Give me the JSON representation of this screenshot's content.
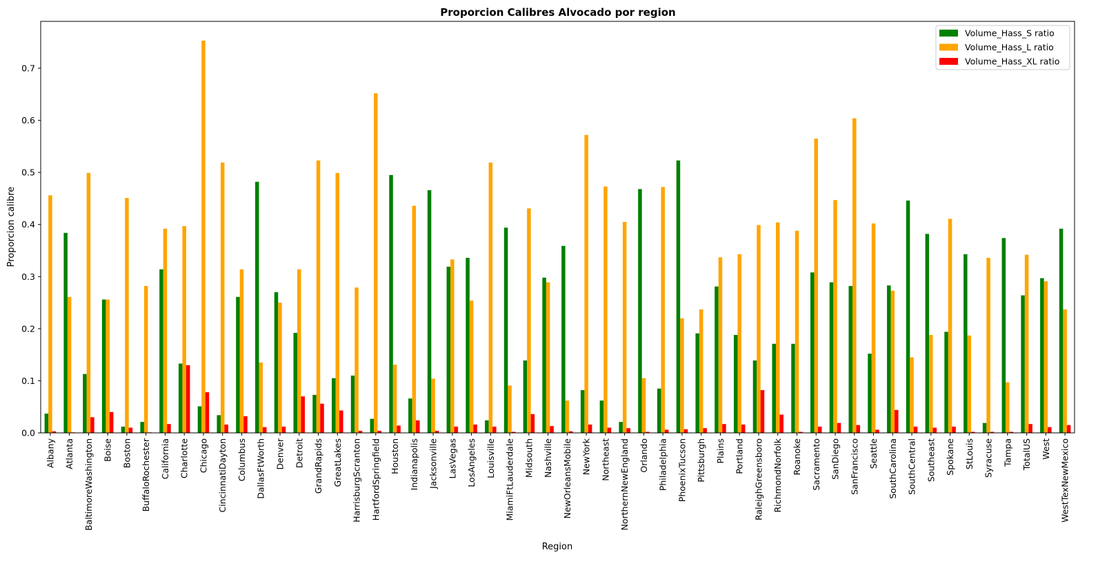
{
  "chart_data": {
    "type": "bar",
    "title": "Proporcion Calibres Alvocado por region",
    "xlabel": "Region",
    "ylabel": "Proporcion calibre",
    "ylim": [
      0,
      0.79
    ],
    "yticks": [
      0.0,
      0.1,
      0.2,
      0.3,
      0.4,
      0.5,
      0.6,
      0.7
    ],
    "ytick_labels": [
      "0.0",
      "0.1",
      "0.2",
      "0.3",
      "0.4",
      "0.5",
      "0.6",
      "0.7"
    ],
    "grid": false,
    "legend_position": "top-right",
    "categories": [
      "Albany",
      "Atlanta",
      "BaltimoreWashington",
      "Boise",
      "Boston",
      "BuffaloRochester",
      "California",
      "Charlotte",
      "Chicago",
      "CincinnatiDayton",
      "Columbus",
      "DallasFtWorth",
      "Denver",
      "Detroit",
      "GrandRapids",
      "GreatLakes",
      "HarrisburgScranton",
      "HartfordSpringfield",
      "Houston",
      "Indianapolis",
      "Jacksonville",
      "LasVegas",
      "LosAngeles",
      "Louisville",
      "MiamiFtLauderdale",
      "Midsouth",
      "Nashville",
      "NewOrleansMobile",
      "NewYork",
      "Northeast",
      "NorthernNewEngland",
      "Orlando",
      "Philadelphia",
      "PhoenixTucson",
      "Pittsburgh",
      "Plains",
      "Portland",
      "RaleighGreensboro",
      "RichmondNorfolk",
      "Roanoke",
      "Sacramento",
      "SanDiego",
      "SanFrancisco",
      "Seattle",
      "SouthCarolina",
      "SouthCentral",
      "Southeast",
      "Spokane",
      "StLouis",
      "Syracuse",
      "Tampa",
      "TotalUS",
      "West",
      "WestTexNewMexico"
    ],
    "series": [
      {
        "name": "Volume_Hass_S ratio",
        "color": "#008000",
        "values": [
          0.037,
          0.384,
          0.113,
          0.256,
          0.012,
          0.021,
          0.314,
          0.133,
          0.051,
          0.034,
          0.261,
          0.482,
          0.27,
          0.192,
          0.073,
          0.105,
          0.11,
          0.027,
          0.495,
          0.066,
          0.466,
          0.319,
          0.336,
          0.024,
          0.394,
          0.139,
          0.298,
          0.359,
          0.082,
          0.062,
          0.021,
          0.468,
          0.085,
          0.523,
          0.191,
          0.281,
          0.188,
          0.139,
          0.171,
          0.171,
          0.308,
          0.289,
          0.282,
          0.152,
          0.283,
          0.446,
          0.382,
          0.194,
          0.343,
          0.019,
          0.374,
          0.264,
          0.297,
          0.392
        ]
      },
      {
        "name": "Volume_Hass_L ratio",
        "color": "#ffa500",
        "values": [
          0.456,
          0.261,
          0.499,
          0.256,
          0.451,
          0.282,
          0.392,
          0.397,
          0.753,
          0.519,
          0.314,
          0.135,
          0.25,
          0.314,
          0.523,
          0.499,
          0.279,
          0.652,
          0.131,
          0.436,
          0.104,
          0.333,
          0.254,
          0.519,
          0.091,
          0.431,
          0.289,
          0.062,
          0.572,
          0.473,
          0.405,
          0.105,
          0.472,
          0.22,
          0.237,
          0.337,
          0.343,
          0.399,
          0.404,
          0.388,
          0.565,
          0.447,
          0.604,
          0.402,
          0.273,
          0.145,
          0.188,
          0.411,
          0.187,
          0.336,
          0.097,
          0.342,
          0.291,
          0.237
        ]
      },
      {
        "name": "Volume_Hass_XL ratio",
        "color": "#ff0000",
        "values": [
          0.003,
          0.001,
          0.03,
          0.04,
          0.01,
          0.001,
          0.017,
          0.13,
          0.078,
          0.016,
          0.032,
          0.011,
          0.012,
          0.07,
          0.056,
          0.043,
          0.004,
          0.004,
          0.014,
          0.024,
          0.004,
          0.012,
          0.016,
          0.012,
          0.002,
          0.036,
          0.013,
          0.003,
          0.016,
          0.01,
          0.009,
          0.002,
          0.006,
          0.007,
          0.009,
          0.017,
          0.016,
          0.082,
          0.035,
          0.002,
          0.012,
          0.019,
          0.015,
          0.006,
          0.044,
          0.012,
          0.01,
          0.012,
          0.002,
          0.002,
          0.002,
          0.017,
          0.011,
          0.015
        ]
      }
    ]
  }
}
